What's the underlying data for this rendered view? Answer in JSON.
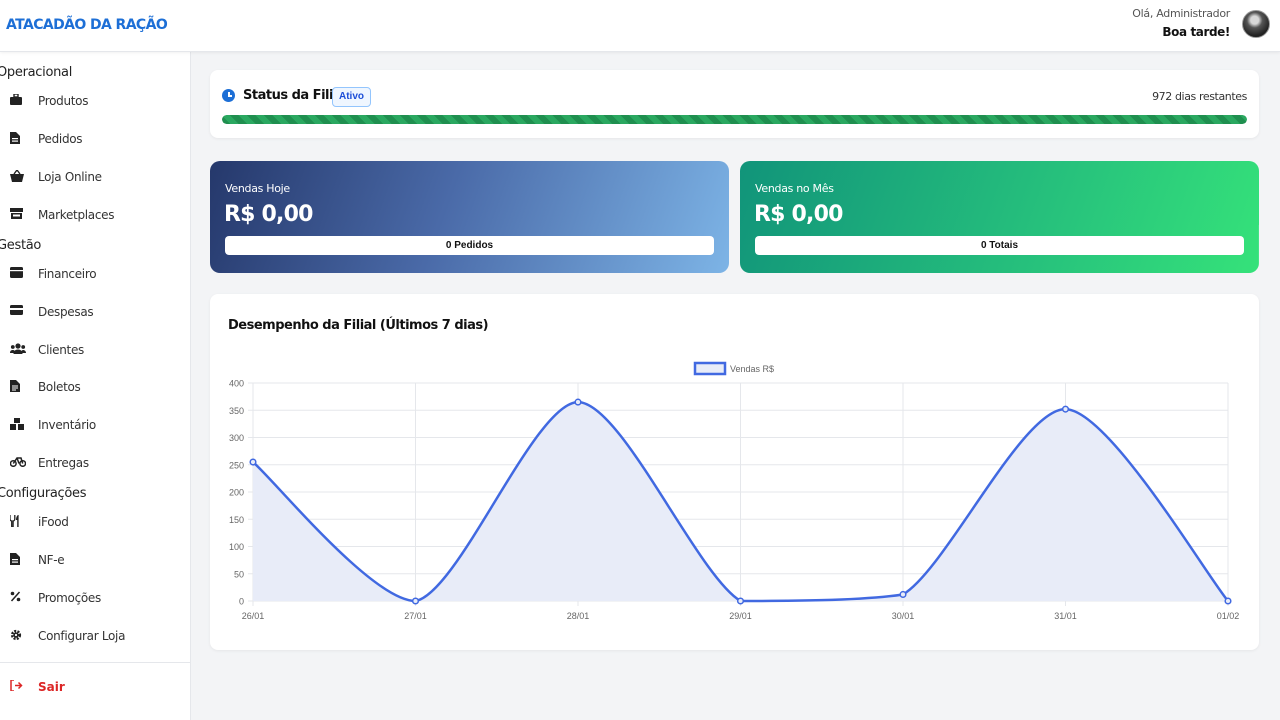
{
  "header": {
    "brand": "ATACADÃO DA RAÇÃO",
    "user_greeting": "Olá, Administrador",
    "time_greeting": "Boa tarde!"
  },
  "sidebar": {
    "sections": [
      {
        "title": "Operacional",
        "items": [
          {
            "label": "Produtos",
            "icon": "briefcase-icon"
          },
          {
            "label": "Pedidos",
            "icon": "file-icon"
          },
          {
            "label": "Loja Online",
            "icon": "basket-icon"
          },
          {
            "label": "Marketplaces",
            "icon": "store-icon"
          }
        ]
      },
      {
        "title": "Gestão",
        "items": [
          {
            "label": "Financeiro",
            "icon": "wallet-icon"
          },
          {
            "label": "Despesas",
            "icon": "credit-card-icon"
          },
          {
            "label": "Clientes",
            "icon": "users-icon"
          },
          {
            "label": "Boletos",
            "icon": "invoice-icon"
          },
          {
            "label": "Inventário",
            "icon": "boxes-icon"
          },
          {
            "label": "Entregas",
            "icon": "bicycle-icon"
          }
        ]
      },
      {
        "title": "Configurações",
        "items": [
          {
            "label": "iFood",
            "icon": "utensils-icon"
          },
          {
            "label": "NF-e",
            "icon": "document-icon"
          },
          {
            "label": "Promoções",
            "icon": "percent-icon"
          },
          {
            "label": "Configurar Loja",
            "icon": "gear-icon"
          }
        ]
      }
    ],
    "logout_label": "Sair"
  },
  "status": {
    "label": "Status da Filial:",
    "badge": "Ativo",
    "days_remaining": "972 dias restantes",
    "progress": 1.0
  },
  "stats": {
    "today": {
      "label": "Vendas Hoje",
      "amount": "R$ 0,00",
      "detail": "0 Pedidos"
    },
    "month": {
      "label": "Vendas no Mês",
      "amount": "R$ 0,00",
      "detail": "0 Totais"
    }
  },
  "chart_title": "Desempenho da Filial (Últimos 7 dias)",
  "chart_data": {
    "type": "line",
    "categories": [
      "26/01",
      "27/01",
      "28/01",
      "29/01",
      "30/01",
      "31/01",
      "01/02"
    ],
    "series": [
      {
        "name": "Vendas R$",
        "values": [
          255,
          0,
          365,
          0,
          12,
          352,
          0
        ]
      }
    ],
    "ylim": [
      0,
      400
    ],
    "yticks": [
      0,
      50,
      100,
      150,
      200,
      250,
      300,
      350,
      400
    ],
    "legend": "top",
    "grid": true,
    "line_color": "#4169e1",
    "fill_color": "#e8ecf8"
  }
}
